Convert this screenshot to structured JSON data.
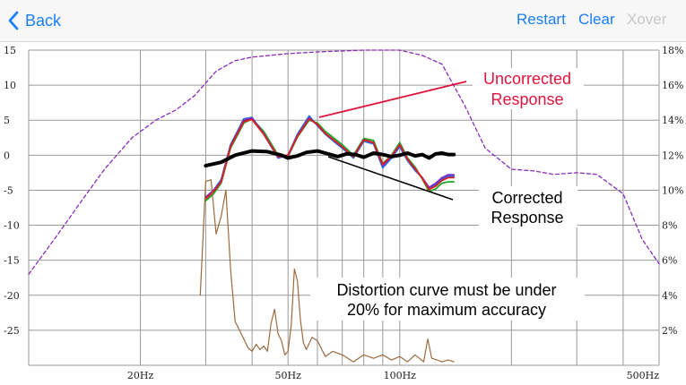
{
  "nav": {
    "back_label": "Back",
    "restart_label": "Restart",
    "clear_label": "Clear",
    "xover_label": "Xover"
  },
  "colors": {
    "accent": "#1a7ef7",
    "disabled": "#c8c8c8",
    "annotation_red": "#e0143c"
  },
  "chart_data": {
    "type": "line",
    "x_scale": "log",
    "x_ticks": [
      {
        "value": 20,
        "label": "20Hz"
      },
      {
        "value": 50,
        "label": "50Hz"
      },
      {
        "value": 100,
        "label": "100Hz"
      },
      {
        "value": 500,
        "label": "500Hz"
      }
    ],
    "xlim": [
      10,
      500
    ],
    "left_axis": {
      "ylim": [
        -30,
        15
      ],
      "ticks": [
        15,
        10,
        5,
        0,
        -5,
        -10,
        -15,
        -20,
        -25
      ]
    },
    "right_axis": {
      "ylim": [
        0,
        18
      ],
      "ticks": [
        "18%",
        "16%",
        "14%",
        "12%",
        "10%",
        "8%",
        "6%",
        "4%",
        "2%"
      ]
    },
    "grid": true,
    "series": [
      {
        "color": "#2b6fdc",
        "axis": "left",
        "x": [
          30,
          31.5,
          33,
          35,
          38,
          40,
          43,
          47,
          50,
          53,
          57,
          60,
          63,
          67,
          70,
          75,
          80,
          85,
          90,
          95,
          100,
          105,
          110,
          115,
          120,
          125,
          130,
          135,
          140
        ],
        "y": [
          -6,
          -5,
          -3.5,
          1.5,
          5.2,
          5.4,
          3,
          -0.4,
          0,
          3,
          5.6,
          4.2,
          3,
          1.8,
          1,
          -0.4,
          2,
          1.6,
          -1.8,
          -0.4,
          1.2,
          -0.8,
          -2.2,
          -3.2,
          -4.8,
          -4.2,
          -3.4,
          -3,
          -3
        ]
      },
      {
        "color": "#21a82f",
        "axis": "left",
        "x": [
          30,
          31.5,
          33,
          35,
          38,
          40,
          43,
          47,
          50,
          53,
          57,
          60,
          63,
          67,
          70,
          75,
          80,
          85,
          90,
          95,
          100,
          105,
          110,
          115,
          120,
          125,
          130,
          135,
          140
        ],
        "y": [
          -6.5,
          -5.5,
          -4,
          1,
          4.6,
          5.2,
          3.4,
          0,
          -0.2,
          2.6,
          5,
          4.6,
          3.4,
          2.3,
          1.5,
          0,
          2.4,
          2.1,
          -1.2,
          0,
          1.8,
          -0.4,
          -1.7,
          -3.4,
          -5.2,
          -4.8,
          -4,
          -3.8,
          -3.8
        ]
      },
      {
        "color": "#7a2cc8",
        "axis": "left",
        "x": [
          30,
          31.5,
          33,
          35,
          38,
          40,
          43,
          47,
          50,
          53,
          57,
          60,
          63,
          67,
          70,
          75,
          80,
          85,
          90,
          95,
          100,
          105,
          110,
          115,
          120,
          125,
          130,
          135,
          140
        ],
        "y": [
          -6,
          -5,
          -3.8,
          1.3,
          5,
          5.3,
          3.1,
          -0.3,
          -0.1,
          2.8,
          5.3,
          4.3,
          3.1,
          2,
          1.2,
          -0.2,
          2.2,
          1.8,
          -1.5,
          -0.2,
          1.5,
          -0.6,
          -2,
          -3.2,
          -4.6,
          -4,
          -3.2,
          -2.8,
          -2.8
        ]
      },
      {
        "color": "#e01c1c",
        "axis": "left",
        "x": [
          30,
          31.5,
          33,
          35,
          38,
          40,
          43,
          47,
          50,
          53,
          57,
          60,
          63,
          67,
          70,
          75,
          80,
          85,
          90,
          95,
          100,
          105,
          110,
          115,
          120,
          125,
          130,
          135,
          140
        ],
        "y": [
          -6.2,
          -5.2,
          -3.8,
          1.2,
          4.8,
          5.1,
          3,
          -0.2,
          0,
          2.7,
          5.2,
          4.4,
          3.1,
          2,
          1.2,
          -0.2,
          2.2,
          1.8,
          -1.3,
          -0.1,
          1.5,
          -0.6,
          -1.9,
          -3.3,
          -4.9,
          -4.4,
          -3.6,
          -3.2,
          -3.2
        ]
      },
      {
        "color": "#000000",
        "axis": "left",
        "width": 4,
        "x": [
          30,
          33,
          36,
          40,
          44,
          48,
          50,
          53,
          56,
          60,
          64,
          68,
          72,
          76,
          80,
          85,
          90,
          95,
          100,
          105,
          110,
          115,
          120,
          125,
          130,
          135,
          140
        ],
        "y": [
          -1.5,
          -1,
          0,
          0.6,
          0.5,
          0,
          -0.4,
          -0.1,
          0.4,
          0.6,
          0.2,
          -0.2,
          0.2,
          0.1,
          -0.3,
          0.3,
          0.1,
          -0.2,
          0,
          0.3,
          -0.1,
          0.1,
          -0.4,
          0.2,
          0.3,
          0.1,
          0.1
        ]
      },
      {
        "color": "#8b2cb8",
        "axis": "right",
        "dashed": true,
        "x": [
          10,
          12,
          14,
          16,
          19,
          22,
          25,
          28,
          32,
          36,
          40,
          50,
          60,
          80,
          100,
          115,
          130,
          150,
          170,
          200,
          230,
          260,
          300,
          340,
          400,
          450,
          500
        ],
        "y": [
          5.2,
          7.5,
          9.5,
          11.2,
          13,
          14,
          14.6,
          15.4,
          16.8,
          17.4,
          17.6,
          17.8,
          17.9,
          18,
          18,
          17.7,
          17.2,
          14.8,
          12.4,
          11.2,
          11.1,
          10.9,
          11,
          10.9,
          9.8,
          7.2,
          5.8
        ]
      },
      {
        "color": "#9c6a3f",
        "axis": "right",
        "x": [
          29,
          30,
          31,
          32,
          33,
          34,
          35,
          36,
          37,
          38,
          39,
          40,
          41,
          42,
          43,
          44,
          45,
          46,
          47,
          48,
          49,
          50,
          51,
          52,
          53,
          54,
          55,
          56,
          58,
          60,
          63,
          66,
          70,
          75,
          80,
          85,
          90,
          95,
          100,
          105,
          110,
          113,
          116,
          119,
          122,
          126,
          130,
          135,
          140
        ],
        "y": [
          4,
          10.5,
          10.6,
          7.5,
          8.5,
          10,
          5.5,
          2.5,
          2,
          1.5,
          1,
          0.8,
          1.2,
          0.9,
          1.1,
          0.8,
          2.4,
          3.2,
          1.8,
          1.4,
          0.6,
          0.8,
          2.3,
          5.5,
          4.8,
          2.6,
          1.3,
          0.9,
          1.6,
          1.4,
          0.5,
          0.8,
          0.6,
          0.2,
          0.6,
          0.4,
          0.6,
          0.3,
          0.5,
          0.2,
          0.6,
          0.4,
          0.2,
          1.5,
          0.4,
          0.3,
          0.2,
          0.3,
          0.2
        ]
      }
    ],
    "annotations": {
      "uncorrected": [
        "Uncorrected",
        "Response"
      ],
      "corrected": [
        "Corrected",
        "Response"
      ],
      "distortion": [
        "Distortion curve must be under",
        "20% for maximum accuracy"
      ]
    }
  }
}
